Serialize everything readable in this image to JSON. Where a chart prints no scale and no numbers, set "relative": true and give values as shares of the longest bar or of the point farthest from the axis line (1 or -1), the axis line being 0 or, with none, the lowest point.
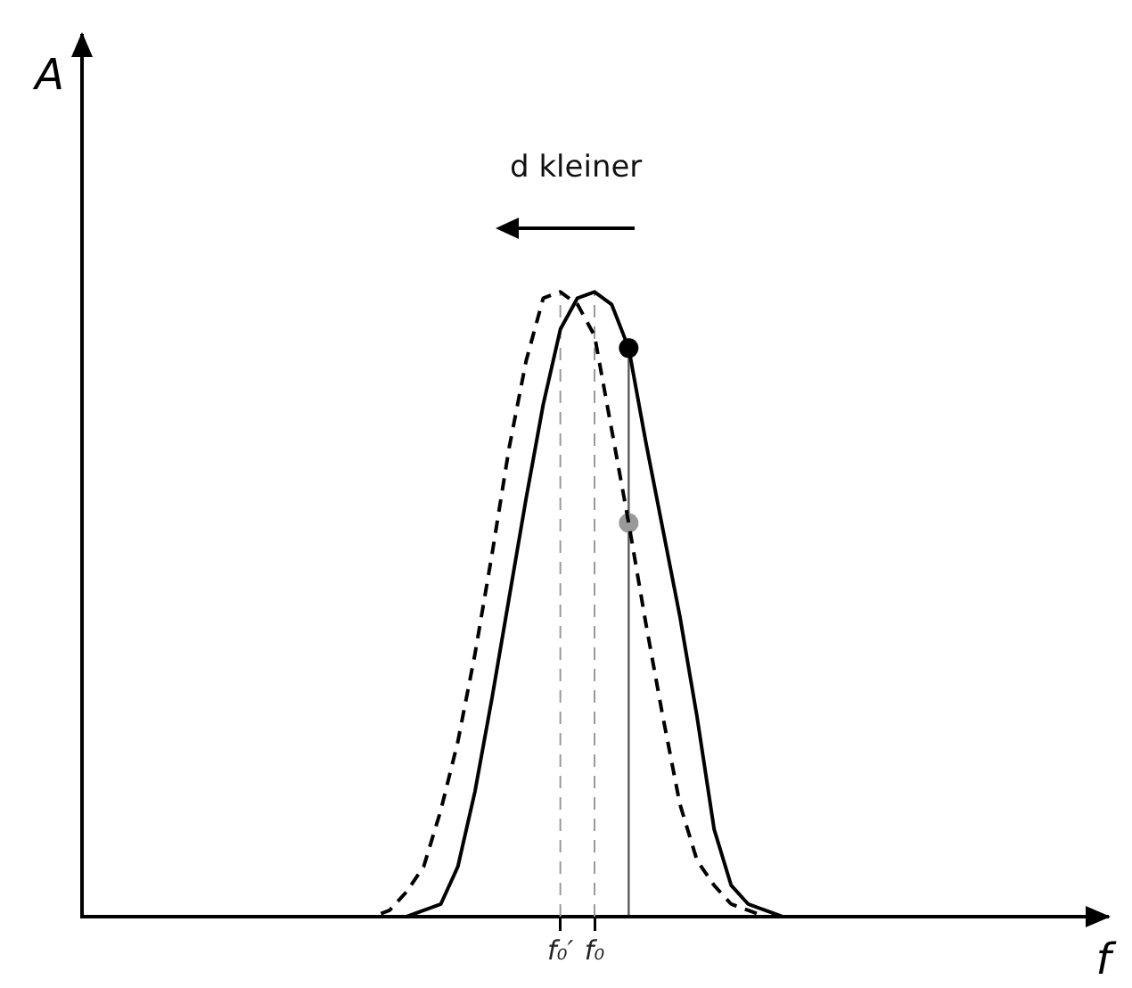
{
  "chart_data": {
    "type": "line",
    "relative": true,
    "xlabel": "f",
    "ylabel": "A",
    "categories": [
      null,
      null,
      null,
      null,
      null,
      null,
      null,
      null,
      null,
      null,
      null,
      null,
      null,
      null,
      null,
      null,
      null,
      null,
      null,
      null,
      null,
      null,
      null,
      null,
      null,
      null,
      null,
      null,
      "f₀′",
      null,
      "f₀",
      null,
      null,
      null,
      null,
      null,
      null,
      null,
      null,
      null,
      null,
      null,
      null,
      null,
      null,
      null,
      null,
      null,
      null,
      null,
      null,
      null,
      null,
      null,
      null,
      null,
      null,
      null,
      null,
      null,
      null
    ],
    "tick_labels": "x",
    "grid": false,
    "legend": false,
    "marker": "none",
    "annotations": [
      "d kleiner"
    ],
    "ref_lines": [
      {
        "axis": "x",
        "value": "f₀′",
        "color": "#999999",
        "line_style": "dashed"
      },
      {
        "axis": "x",
        "value": "f₀",
        "color": "#999999",
        "line_style": "dashed"
      }
    ],
    "series": [
      {
        "color": "#000000",
        "line_style": "solid",
        "values": [
          0,
          0,
          0,
          0,
          0,
          0,
          0,
          0,
          0,
          0,
          0,
          0,
          0,
          0,
          0,
          0,
          0,
          0,
          0,
          0,
          0.01,
          0.02,
          0.08,
          0.2,
          0.35,
          0.51,
          0.67,
          0.82,
          0.94,
          0.99,
          1,
          0.98,
          0.91,
          0.76,
          0.62,
          0.48,
          0.32,
          0.14,
          0.05,
          0.02,
          0.01,
          0,
          0,
          0,
          0,
          0,
          0,
          0,
          0,
          0,
          0,
          0,
          0,
          0,
          0,
          0,
          0,
          0,
          0,
          0,
          0
        ]
      },
      {
        "color": "#000000",
        "line_style": "dashed",
        "values": [
          0,
          0,
          0,
          0,
          0,
          0,
          0,
          0,
          0,
          0,
          0,
          0,
          0,
          0,
          0,
          0,
          0,
          0,
          0.01,
          0.04,
          0.08,
          0.17,
          0.28,
          0.42,
          0.58,
          0.75,
          0.89,
          0.99,
          1,
          0.98,
          0.93,
          0.78,
          0.63,
          0.47,
          0.32,
          0.18,
          0.09,
          0.05,
          0.02,
          0.01,
          0,
          0,
          0,
          0,
          0,
          0,
          0,
          0,
          0,
          0,
          0,
          0,
          0,
          0,
          0,
          0,
          0,
          0,
          0,
          0,
          0
        ]
      },
      {
        "type": "lollipop",
        "marker": "circle",
        "color": "#000000",
        "values": [
          null,
          null,
          null,
          null,
          null,
          null,
          null,
          null,
          null,
          null,
          null,
          null,
          null,
          null,
          null,
          null,
          null,
          null,
          null,
          null,
          null,
          null,
          null,
          null,
          null,
          null,
          null,
          null,
          null,
          null,
          null,
          null,
          0.91,
          null,
          null,
          null,
          null,
          null,
          null,
          null,
          null,
          null,
          null,
          null,
          null,
          null,
          null,
          null,
          null,
          null,
          null,
          null,
          null,
          null,
          null,
          null,
          null,
          null,
          null,
          null,
          null
        ]
      },
      {
        "type": "scatter",
        "marker": "circle",
        "color": "#999999",
        "values": [
          null,
          null,
          null,
          null,
          null,
          null,
          null,
          null,
          null,
          null,
          null,
          null,
          null,
          null,
          null,
          null,
          null,
          null,
          null,
          null,
          null,
          null,
          null,
          null,
          null,
          null,
          null,
          null,
          null,
          null,
          null,
          null,
          0.63,
          null,
          null,
          null,
          null,
          null,
          null,
          null,
          null,
          null,
          null,
          null,
          null,
          null,
          null,
          null,
          null,
          null,
          null,
          null,
          null,
          null,
          null,
          null,
          null,
          null,
          null,
          null,
          null
        ]
      }
    ]
  }
}
